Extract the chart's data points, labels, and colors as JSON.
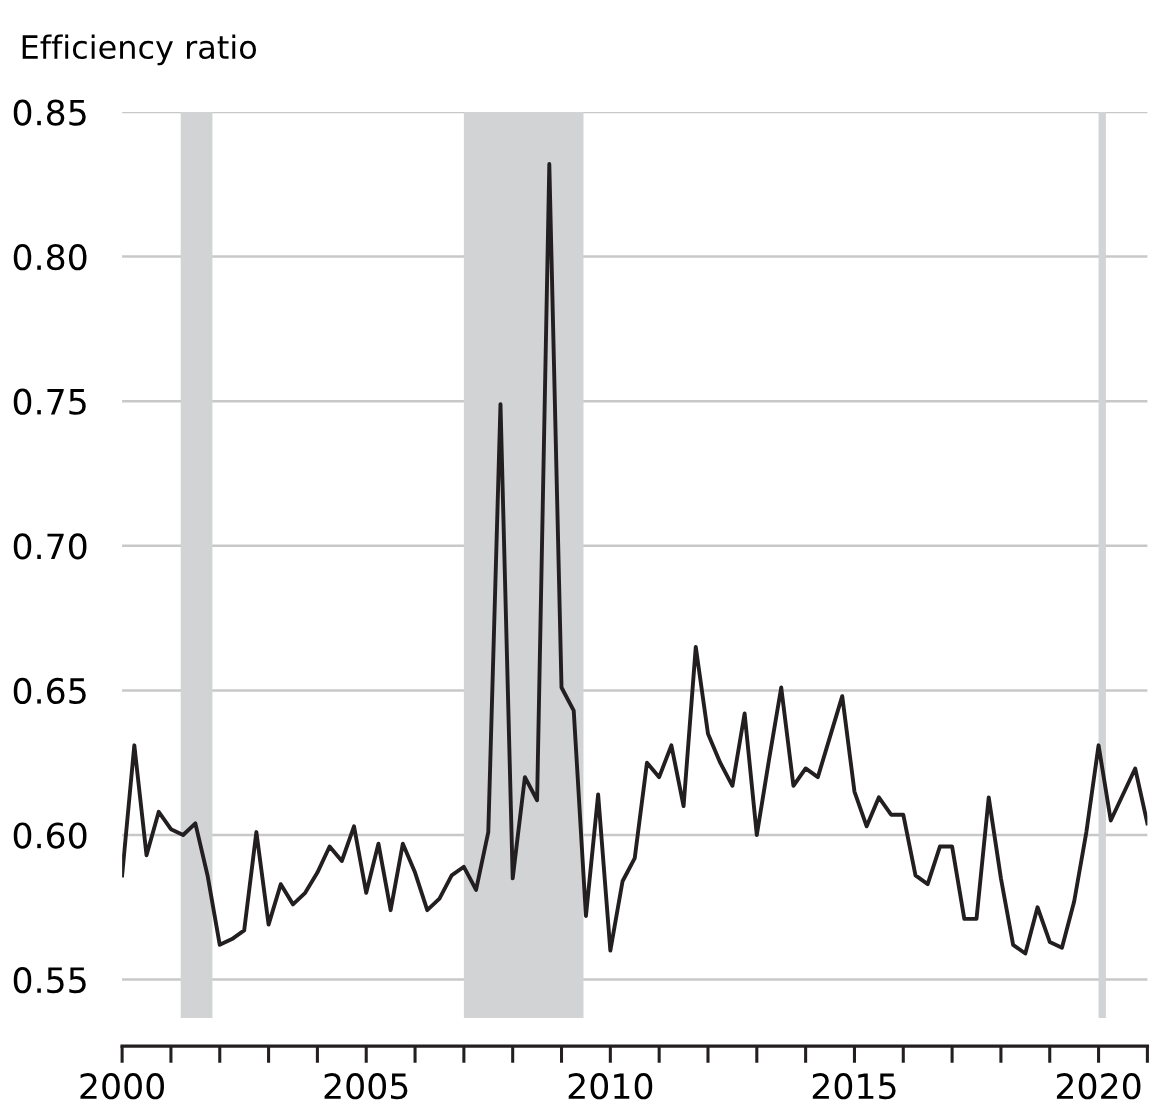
{
  "chart_data": {
    "type": "line",
    "ylabel": "Efficiency ratio",
    "x": [
      2000.0,
      2000.25,
      2000.5,
      2000.75,
      2001.0,
      2001.25,
      2001.5,
      2001.75,
      2002.0,
      2002.25,
      2002.5,
      2002.75,
      2003.0,
      2003.25,
      2003.5,
      2003.75,
      2004.0,
      2004.25,
      2004.5,
      2004.75,
      2005.0,
      2005.25,
      2005.5,
      2005.75,
      2006.0,
      2006.25,
      2006.5,
      2006.75,
      2007.0,
      2007.25,
      2007.5,
      2007.75,
      2008.0,
      2008.25,
      2008.5,
      2008.75,
      2009.0,
      2009.25,
      2009.5,
      2009.75,
      2010.0,
      2010.25,
      2010.5,
      2010.75,
      2011.0,
      2011.25,
      2011.5,
      2011.75,
      2012.0,
      2012.25,
      2012.5,
      2012.75,
      2013.0,
      2013.25,
      2013.5,
      2013.75,
      2014.0,
      2014.25,
      2014.5,
      2014.75,
      2015.0,
      2015.25,
      2015.5,
      2015.75,
      2016.0,
      2016.25,
      2016.5,
      2016.75,
      2017.0,
      2017.25,
      2017.5,
      2017.75,
      2018.0,
      2018.25,
      2018.5,
      2018.75,
      2019.0,
      2019.25,
      2019.5,
      2019.75,
      2020.0,
      2020.25,
      2020.5,
      2020.75,
      2021.0
    ],
    "series": [
      {
        "color": "#231f20",
        "values": [
          0.586,
          0.631,
          0.593,
          0.608,
          0.602,
          0.6,
          0.604,
          0.586,
          0.562,
          0.564,
          0.567,
          0.601,
          0.569,
          0.583,
          0.576,
          0.58,
          0.587,
          0.596,
          0.591,
          0.603,
          0.58,
          0.597,
          0.574,
          0.597,
          0.587,
          0.574,
          0.578,
          0.586,
          0.589,
          0.581,
          0.601,
          0.749,
          0.585,
          0.62,
          0.612,
          0.832,
          0.651,
          0.643,
          0.572,
          0.614,
          0.56,
          0.584,
          0.592,
          0.625,
          0.62,
          0.631,
          0.61,
          0.665,
          0.635,
          0.625,
          0.617,
          0.642,
          0.6,
          0.626,
          0.651,
          0.617,
          0.623,
          0.62,
          0.634,
          0.648,
          0.615,
          0.603,
          0.613,
          0.607,
          0.607,
          0.586,
          0.583,
          0.596,
          0.596,
          0.571,
          0.571,
          0.613,
          0.585,
          0.562,
          0.559,
          0.575,
          0.563,
          0.561,
          0.577,
          0.601,
          0.631,
          0.605,
          0.614,
          0.623,
          0.604
        ]
      }
    ],
    "xlim": [
      2000,
      2021
    ],
    "ylim": [
      0.527,
      0.85
    ],
    "xticks": [
      2000,
      {
        "value": 2001,
        "label": null
      },
      {
        "value": 2002,
        "label": null
      },
      {
        "value": 2003,
        "label": null
      },
      {
        "value": 2004,
        "label": null
      },
      2005,
      {
        "value": 2006,
        "label": null
      },
      {
        "value": 2007,
        "label": null
      },
      {
        "value": 2008,
        "label": null
      },
      {
        "value": 2009,
        "label": null
      },
      2010,
      {
        "value": 2011,
        "label": null
      },
      {
        "value": 2012,
        "label": null
      },
      {
        "value": 2013,
        "label": null
      },
      {
        "value": 2014,
        "label": null
      },
      2015,
      {
        "value": 2016,
        "label": null
      },
      {
        "value": 2017,
        "label": null
      },
      {
        "value": 2018,
        "label": null
      },
      {
        "value": 2019,
        "label": null
      },
      2020,
      {
        "value": 2021,
        "label": null
      }
    ],
    "yticks": [
      {
        "value": 0.55,
        "label": "0.55"
      },
      {
        "value": 0.6,
        "label": "0.60"
      },
      {
        "value": 0.65,
        "label": "0.65"
      },
      {
        "value": 0.7,
        "label": "0.70"
      },
      {
        "value": 0.75,
        "label": "0.75"
      },
      {
        "value": 0.8,
        "label": "0.80"
      },
      {
        "value": 0.85,
        "label": "0.85"
      }
    ],
    "grid": "y",
    "line_style": "solid",
    "marker": "none",
    "bands": [
      {
        "axis": "x",
        "from": 2001.2,
        "to": 2001.85,
        "color": "#d1d3d4"
      },
      {
        "axis": "x",
        "from": 2007.0,
        "to": 2009.45,
        "color": "#d1d3d4"
      },
      {
        "axis": "x",
        "from": 2020.0,
        "to": 2020.15,
        "color": "#d1d3d4"
      }
    ]
  }
}
